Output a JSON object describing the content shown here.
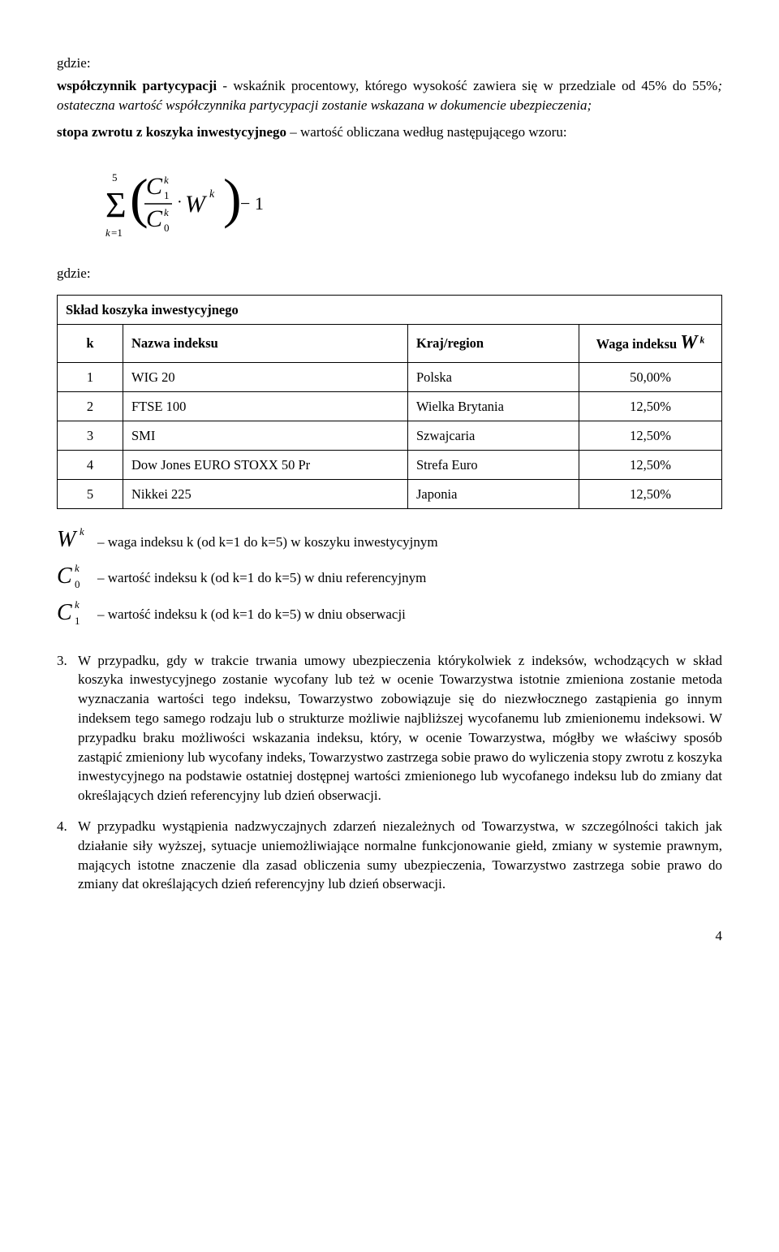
{
  "intro": {
    "gdzie_label": "gdzie:",
    "para1_part1": "współczynnik partycypacji",
    "para1_part2": " - wskaźnik procentowy, którego wysokość zawiera się w przedziale od 45% do 55%",
    "para1_part3": "; ostateczna wartość współczynnika partycypacji zostanie wskazana w dokumencie ubezpieczenia;",
    "para2_part1": "stopa zwrotu z koszyka inwestycyjnego",
    "para2_part2": " – wartość obliczana według następującego wzoru:"
  },
  "table": {
    "title": "Skład koszyka inwestycyjnego",
    "head_k": "k",
    "head_name": "Nazwa indeksu",
    "head_region": "Kraj/region",
    "head_weight_prefix": "Waga indeksu ",
    "rows": [
      {
        "k": "1",
        "name": "WIG 20",
        "region": "Polska",
        "weight": "50,00%"
      },
      {
        "k": "2",
        "name": "FTSE 100",
        "region": "Wielka Brytania",
        "weight": "12,50%"
      },
      {
        "k": "3",
        "name": "SMI",
        "region": "Szwajcaria",
        "weight": "12,50%"
      },
      {
        "k": "4",
        "name": "Dow Jones EURO STOXX 50 Pr",
        "region": "Strefa Euro",
        "weight": "12,50%"
      },
      {
        "k": "5",
        "name": "Nikkei 225",
        "region": "Japonia",
        "weight": "12,50%"
      }
    ]
  },
  "legend": {
    "w_text": " – waga indeksu k (od k=1 do k=5) w koszyku inwestycyjnym",
    "c0_text": " – wartość indeksu k (od k=1 do k=5) w dniu referencyjnym",
    "c1_text": " – wartość indeksu k (od k=1 do k=5) w dniu obserwacji"
  },
  "para3": {
    "num": "3.",
    "text": "W przypadku, gdy w trakcie trwania umowy ubezpieczenia którykolwiek z indeksów, wchodzących w skład koszyka inwestycyjnego zostanie wycofany lub też w ocenie Towarzystwa istotnie zmieniona zostanie metoda wyznaczania wartości tego indeksu, Towarzystwo zobowiązuje się do niezwłocznego zastąpienia go innym indeksem tego samego rodzaju lub o strukturze możliwie najbliższej wycofanemu lub zmienionemu indeksowi. W przypadku braku możliwości wskazania indeksu, który, w ocenie Towarzystwa, mógłby we właściwy sposób zastąpić zmieniony lub wycofany indeks, Towarzystwo zastrzega sobie prawo do wyliczenia stopy zwrotu z koszyka inwestycyjnego na podstawie ostatniej dostępnej wartości zmienionego lub wycofanego indeksu lub do zmiany dat określających dzień referencyjny lub dzień obserwacji."
  },
  "para4": {
    "num": "4.",
    "text": "W przypadku wystąpienia nadzwyczajnych zdarzeń niezależnych od Towarzystwa, w szczególności takich jak działanie siły wyższej, sytuacje uniemożliwiające normalne funkcjonowanie giełd, zmiany w systemie prawnym, mających istotne znaczenie dla zasad obliczenia sumy ubezpieczenia, Towarzystwo zastrzega sobie prawo do zmiany dat określających dzień referencyjny lub dzień obserwacji."
  },
  "page_number": "4"
}
